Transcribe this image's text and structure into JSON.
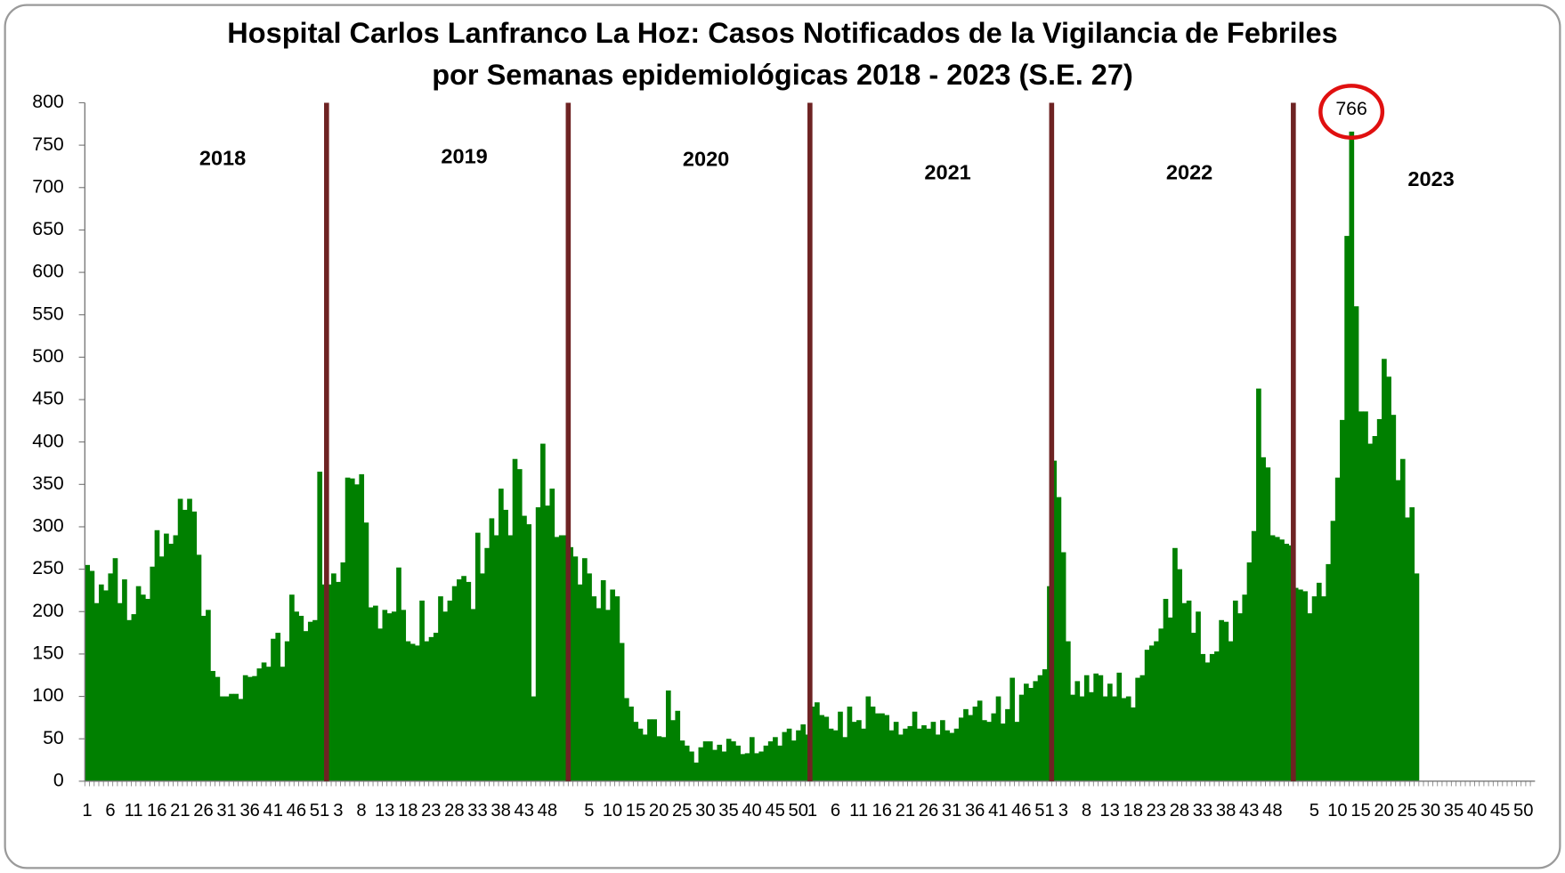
{
  "chart_data": {
    "type": "bar",
    "title": [
      "Hospital Carlos Lanfranco La Hoz: Casos Notificados de la Vigilancia de Febriles",
      "por Semanas epidemiológicas 2018 - 2023 (S.E. 27)"
    ],
    "year_labels": [
      "2018",
      "2019",
      "2020",
      "2021",
      "2022",
      "2023"
    ],
    "color": "#008000",
    "ylim": [
      0,
      800
    ],
    "yticks": [
      0,
      50,
      100,
      150,
      200,
      250,
      300,
      350,
      400,
      450,
      500,
      550,
      600,
      650,
      700,
      750,
      800
    ],
    "categories": [
      "1",
      null,
      null,
      null,
      null,
      "6",
      null,
      null,
      null,
      null,
      "11",
      null,
      null,
      null,
      null,
      "16",
      null,
      null,
      null,
      null,
      "21",
      null,
      null,
      null,
      null,
      "26",
      null,
      null,
      null,
      null,
      "31",
      null,
      null,
      null,
      null,
      "36",
      null,
      null,
      null,
      null,
      "41",
      null,
      null,
      null,
      null,
      "46",
      null,
      null,
      null,
      null,
      "51",
      null,
      null,
      null,
      "3",
      null,
      null,
      null,
      null,
      "8",
      null,
      null,
      null,
      null,
      "13",
      null,
      null,
      null,
      null,
      "18",
      null,
      null,
      null,
      null,
      "23",
      null,
      null,
      null,
      null,
      "28",
      null,
      null,
      null,
      null,
      "33",
      null,
      null,
      null,
      null,
      "38",
      null,
      null,
      null,
      null,
      "43",
      null,
      null,
      null,
      null,
      "48",
      null,
      null,
      null,
      null,
      null,
      null,
      null,
      null,
      "5",
      null,
      null,
      null,
      null,
      "10",
      null,
      null,
      null,
      null,
      "15",
      null,
      null,
      null,
      null,
      "20",
      null,
      null,
      null,
      null,
      "25",
      null,
      null,
      null,
      null,
      "30",
      null,
      null,
      null,
      null,
      "35",
      null,
      null,
      null,
      null,
      "40",
      null,
      null,
      null,
      null,
      "45",
      null,
      null,
      null,
      null,
      "50",
      null,
      null,
      "1",
      null,
      null,
      null,
      null,
      "6",
      null,
      null,
      null,
      null,
      "11",
      null,
      null,
      null,
      null,
      "16",
      null,
      null,
      null,
      null,
      "21",
      null,
      null,
      null,
      null,
      "26",
      null,
      null,
      null,
      null,
      "31",
      null,
      null,
      null,
      null,
      "36",
      null,
      null,
      null,
      null,
      "41",
      null,
      null,
      null,
      null,
      "46",
      null,
      null,
      null,
      null,
      "51",
      null,
      null,
      null,
      "3",
      null,
      null,
      null,
      null,
      "8",
      null,
      null,
      null,
      null,
      "13",
      null,
      null,
      null,
      null,
      "18",
      null,
      null,
      null,
      null,
      "23",
      null,
      null,
      null,
      null,
      "28",
      null,
      null,
      null,
      null,
      "33",
      null,
      null,
      null,
      null,
      "38",
      null,
      null,
      null,
      null,
      "43",
      null,
      null,
      null,
      null,
      "48",
      null,
      null,
      null,
      null,
      null,
      null,
      null,
      null,
      "5",
      null,
      null,
      null,
      null,
      "10",
      null,
      null,
      null,
      null,
      "15",
      null,
      null,
      null,
      null,
      "20",
      null,
      null,
      null,
      null,
      "25",
      null,
      null,
      null,
      null,
      "30",
      null,
      null,
      null,
      null,
      "35",
      null,
      null,
      null,
      null,
      "40",
      null,
      null,
      null,
      null,
      "45",
      null,
      null,
      null,
      null,
      "50",
      null,
      null
    ],
    "values": [
      255,
      248,
      210,
      232,
      225,
      245,
      263,
      210,
      238,
      190,
      197,
      230,
      220,
      215,
      253,
      296,
      265,
      292,
      280,
      290,
      333,
      320,
      333,
      318,
      267,
      195,
      202,
      130,
      123,
      100,
      100,
      103,
      103,
      97,
      125,
      123,
      124,
      133,
      140,
      135,
      168,
      175,
      135,
      165,
      220,
      200,
      195,
      177,
      188,
      190,
      365,
      232,
      232,
      245,
      235,
      258,
      358,
      357,
      350,
      362,
      305,
      205,
      207,
      180,
      202,
      198,
      200,
      252,
      202,
      165,
      162,
      160,
      213,
      165,
      170,
      175,
      218,
      200,
      213,
      230,
      238,
      242,
      235,
      203,
      293,
      245,
      275,
      310,
      290,
      345,
      320,
      290,
      380,
      368,
      313,
      303,
      100,
      323,
      398,
      325,
      345,
      288,
      290,
      290,
      276,
      265,
      232,
      263,
      245,
      218,
      204,
      237,
      202,
      226,
      218,
      163,
      98,
      88,
      70,
      62,
      55,
      73,
      73,
      53,
      52,
      107,
      72,
      83,
      48,
      42,
      35,
      22,
      40,
      47,
      47,
      37,
      43,
      35,
      50,
      47,
      42,
      32,
      33,
      52,
      33,
      35,
      42,
      47,
      52,
      42,
      58,
      62,
      48,
      60,
      67,
      55,
      88,
      93,
      78,
      76,
      62,
      60,
      82,
      52,
      88,
      70,
      72,
      62,
      100,
      88,
      80,
      80,
      78,
      60,
      70,
      55,
      62,
      65,
      82,
      62,
      66,
      62,
      70,
      55,
      72,
      60,
      57,
      62,
      75,
      85,
      78,
      88,
      95,
      72,
      70,
      80,
      100,
      68,
      85,
      122,
      70,
      102,
      115,
      110,
      118,
      125,
      132,
      230,
      378,
      335,
      270,
      165,
      102,
      118,
      100,
      125,
      105,
      127,
      125,
      100,
      115,
      100,
      128,
      98,
      100,
      87,
      122,
      125,
      155,
      160,
      165,
      180,
      215,
      193,
      275,
      250,
      210,
      213,
      175,
      200,
      150,
      140,
      150,
      153,
      190,
      188,
      165,
      213,
      198,
      220,
      258,
      295,
      463,
      382,
      370,
      290,
      288,
      285,
      280,
      278,
      228,
      226,
      224,
      198,
      218,
      234,
      218,
      256,
      307,
      358,
      426,
      643,
      766,
      560,
      436,
      436,
      398,
      407,
      427,
      498,
      477,
      432,
      355,
      380,
      311,
      323,
      245,
      null,
      null,
      null,
      null,
      null,
      null,
      null,
      null,
      null,
      null,
      null,
      null,
      null,
      null,
      null,
      null,
      null,
      null,
      null,
      null,
      null,
      null,
      null,
      null,
      null
    ]
  }
}
